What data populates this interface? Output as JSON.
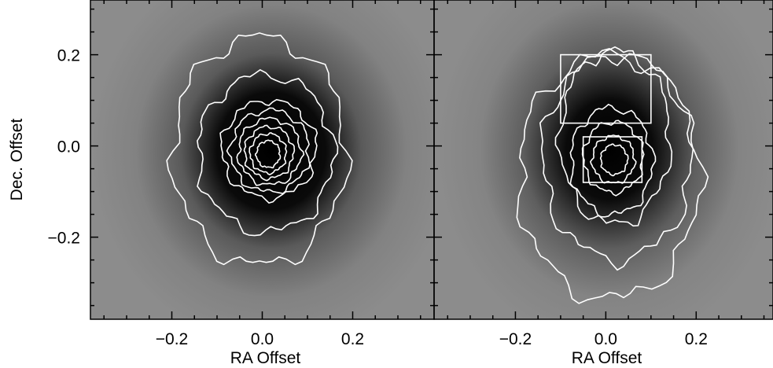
{
  "chart_data": [
    {
      "type": "contour",
      "x_label": "RA Offset",
      "y_label": "Dec. Offset",
      "xlim": [
        -0.38,
        0.38
      ],
      "ylim": [
        -0.38,
        0.32
      ],
      "xticks": [
        {
          "value": -0.2,
          "label": "−0.2"
        },
        {
          "value": 0,
          "label": "0.0"
        },
        0.2
      ],
      "yticks": [
        {
          "value": -0.2,
          "label": "−0.2"
        },
        {
          "value": 0,
          "label": "0.0"
        },
        0.2
      ],
      "xminorticks": [
        -0.35,
        -0.3,
        -0.25,
        -0.15,
        -0.1,
        -0.05,
        0.05,
        0.1,
        0.15,
        0.25,
        0.3,
        0.35
      ],
      "yminorticks": [
        -0.35,
        -0.3,
        -0.25,
        -0.15,
        -0.1,
        -0.05,
        0.05,
        0.1,
        0.15,
        0.25,
        0.3
      ],
      "boxes": []
    },
    {
      "type": "contour",
      "x_label": "RA Offset",
      "xlim": [
        -0.38,
        0.37
      ],
      "ylim": [
        -0.38,
        0.32
      ],
      "xticks": [
        {
          "value": -0.2,
          "label": "−0.2"
        },
        {
          "value": 0,
          "label": "0.0"
        },
        0.2
      ],
      "yticks": [
        -0.2,
        0,
        0.2
      ],
      "xminorticks": [
        -0.35,
        -0.3,
        -0.25,
        -0.15,
        -0.1,
        -0.05,
        0.05,
        0.1,
        0.15,
        0.25,
        0.3,
        0.35
      ],
      "yminorticks": [
        -0.35,
        -0.3,
        -0.25,
        -0.15,
        -0.1,
        -0.05,
        0.05,
        0.1,
        0.15,
        0.25,
        0.3
      ],
      "boxes": [
        {
          "x0": -0.1,
          "x1": 0.1,
          "y0": 0.05,
          "y1": 0.2
        },
        {
          "x0": -0.05,
          "x1": 0.08,
          "y0": -0.08,
          "y1": 0.02
        }
      ]
    }
  ]
}
